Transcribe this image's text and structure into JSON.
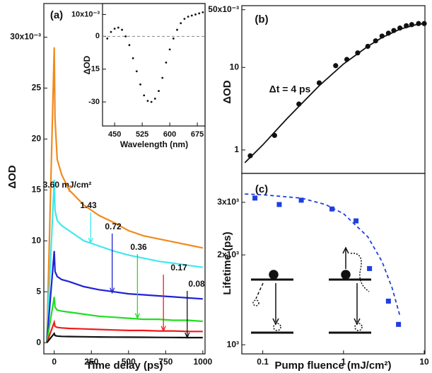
{
  "chart_data": [
    {
      "type": "line",
      "panel_label": "(a)",
      "xlabel": "Time delay (ps)",
      "ylabel": "ΔOD",
      "xlim": [
        -70,
        1015
      ],
      "ylim": [
        -1.1,
        33.3
      ],
      "xticks": [
        0,
        250,
        500,
        750,
        1000
      ],
      "yticks": [
        0,
        5,
        10,
        15,
        20,
        25,
        {
          "value": 30,
          "label": "30x10⁻³"
        }
      ],
      "x": [
        -50,
        0,
        5,
        20,
        50,
        100,
        200,
        300,
        400,
        500,
        600,
        700,
        800,
        900,
        1000
      ],
      "series": [
        {
          "color": "#f28a1e",
          "values": [
            0,
            29,
            22,
            18,
            16.5,
            15,
            13.5,
            12.5,
            11.8,
            11,
            10.5,
            10.2,
            9.9,
            9.6,
            9.3
          ]
        },
        {
          "color": "#3fe8ee",
          "values": [
            0,
            16,
            13,
            12,
            11.5,
            11,
            10,
            9.5,
            9,
            8.6,
            8.3,
            8,
            7.8,
            7.6,
            7.4
          ]
        },
        {
          "color": "#1f22d6",
          "values": [
            0,
            9,
            7,
            6.5,
            6.2,
            6,
            5.5,
            5.2,
            5,
            4.8,
            4.7,
            4.6,
            4.5,
            4.4,
            4.3
          ]
        },
        {
          "color": "#22dd22",
          "values": [
            0,
            4.5,
            3.5,
            3.2,
            3.1,
            3,
            2.8,
            2.6,
            2.5,
            2.4,
            2.3,
            2.3,
            2.2,
            2.2,
            2.1
          ]
        },
        {
          "color": "#ee1c1c",
          "values": [
            0,
            2,
            1.6,
            1.5,
            1.45,
            1.4,
            1.35,
            1.3,
            1.25,
            1.2,
            1.2,
            1.15,
            1.15,
            1.1,
            1.1
          ]
        },
        {
          "color": "#111111",
          "values": [
            0,
            0.9,
            0.7,
            0.65,
            0.62,
            0.6,
            0.58,
            0.56,
            0.55,
            0.54,
            0.53,
            0.52,
            0.51,
            0.5,
            0.5
          ]
        }
      ],
      "annotations": [
        {
          "text": "3.60 mJ/cm²",
          "x": 100,
          "y": 15,
          "color": "#f28a1e"
        },
        {
          "text": "1.43",
          "x": 245,
          "y": 9.8,
          "color": "#3fe8ee"
        },
        {
          "text": "0.72",
          "x": 390,
          "y": 4.9,
          "color": "#1f22d6"
        },
        {
          "text": "0.36",
          "x": 560,
          "y": 2.4,
          "color": "#22dd22"
        },
        {
          "text": "0.17",
          "x": 735,
          "y": 1.15,
          "color": "#ee1c1c"
        },
        {
          "text": "0.08",
          "x": 895,
          "y": 0.5,
          "color": "#111111"
        }
      ]
    },
    {
      "type": "scatter",
      "xlabel": "Wavelength (nm)",
      "ylabel": "ΔOD",
      "xlim": [
        417,
        696
      ],
      "ylim": [
        -41,
        15
      ],
      "xticks": [
        450,
        525,
        600,
        675
      ],
      "yticks": [
        -30,
        -15,
        0,
        {
          "value": 10,
          "label": "10x10⁻³"
        }
      ],
      "reference_line": 0,
      "series": [
        {
          "color": "#111111",
          "marker": "dot",
          "x": [
            430,
            440,
            450,
            460,
            470,
            480,
            490,
            500,
            510,
            520,
            530,
            540,
            550,
            560,
            570,
            580,
            590,
            600,
            610,
            620,
            630,
            640,
            650,
            660,
            670,
            680,
            690
          ],
          "values": [
            -1,
            2,
            3.5,
            4,
            3,
            0,
            -4,
            -10,
            -16,
            -22,
            -27,
            -29.5,
            -30,
            -28.5,
            -25,
            -19,
            -12,
            -6,
            -1,
            3,
            6,
            8,
            9,
            9.5,
            10,
            10.5,
            11
          ]
        }
      ]
    },
    {
      "type": "scatter",
      "panel_label": "(b)",
      "ylabel": "ΔOD",
      "annotation": "Δt = 4 ps",
      "xlog": true,
      "ylog": true,
      "xlim": [
        0.055,
        10.2
      ],
      "ylim": [
        0.52,
        56
      ],
      "yticks": [
        1,
        10,
        {
          "value": 50,
          "label": "50x10⁻³"
        }
      ],
      "series": [
        {
          "color": "#111111",
          "marker": "circle",
          "x": [
            0.07,
            0.14,
            0.28,
            0.5,
            0.8,
            1.1,
            1.5,
            2,
            2.5,
            3,
            3.6,
            4.2,
            5,
            6,
            7,
            8.5,
            10
          ],
          "values": [
            0.85,
            1.5,
            3.6,
            6.5,
            10.5,
            12.5,
            15,
            18,
            21,
            24,
            26,
            28,
            30,
            32,
            33,
            34,
            34
          ]
        },
        {
          "color": "#111111",
          "style": "solid",
          "x": [
            0.06,
            0.1,
            0.2,
            0.5,
            1,
            2,
            3,
            5,
            8,
            10
          ],
          "values": [
            0.7,
            1.15,
            2.4,
            6,
            11,
            18,
            23,
            29,
            33,
            34
          ]
        }
      ]
    },
    {
      "type": "scatter",
      "panel_label": "(c)",
      "xlabel": "Pump fluence (mJ/cm²)",
      "ylabel": "Lifetime (ps)",
      "xlog": true,
      "ylog": true,
      "xlim": [
        0.055,
        10.2
      ],
      "ylim": [
        932,
        3750
      ],
      "xticks": [
        0.1,
        1,
        10
      ],
      "yticks": [
        {
          "value": 1000,
          "label": "10³"
        },
        {
          "value": 2000,
          "label": "2x10³"
        },
        {
          "value": 3000,
          "label": "3x10³"
        }
      ],
      "series": [
        {
          "color": "#1f3fe0",
          "marker": "square",
          "x": [
            0.08,
            0.16,
            0.3,
            0.72,
            1.43,
            2.1,
            3.6,
            4.8
          ],
          "values": [
            3100,
            2950,
            3050,
            2850,
            2600,
            1800,
            1400,
            1170
          ]
        },
        {
          "color": "#1f3fe0",
          "style": "dashed",
          "x": [
            0.06,
            0.1,
            0.3,
            0.6,
            1,
            2,
            3,
            4,
            5
          ],
          "values": [
            3200,
            3180,
            3100,
            2950,
            2750,
            2300,
            1900,
            1550,
            1250
          ]
        }
      ]
    }
  ]
}
